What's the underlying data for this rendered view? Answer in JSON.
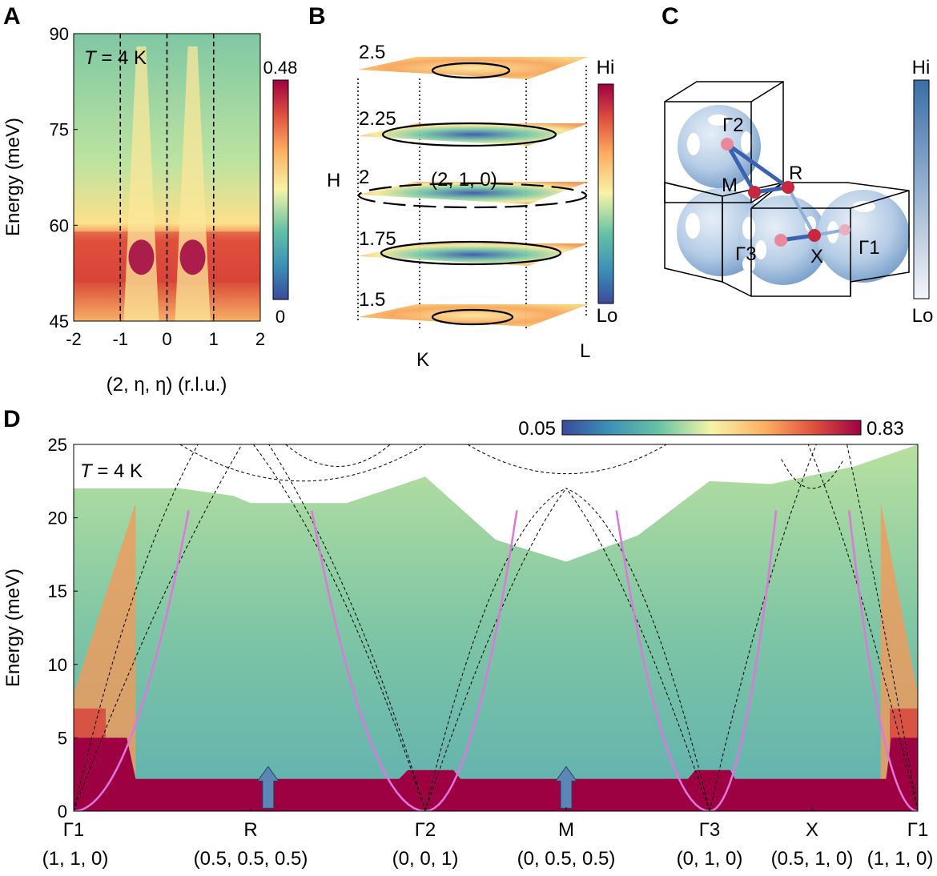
{
  "colors": {
    "jet_lo": "#3b4a9c",
    "jet_mid": "#f7f4a8",
    "jet_hi": "#9e0142",
    "blue_lo": "#f1f3f8",
    "blue_hi": "#3a6ea8",
    "magenta": "#dd77dd",
    "arrow": "#5b86b5"
  },
  "panels": {
    "A": {
      "letter": "A",
      "temp_sym": "T",
      "temp_rest": " = 4 K",
      "ylabel": "Energy (meV)",
      "xlabel": "(2, η, η) (r.l.u.)",
      "cb_max": "0.48",
      "cb_min": "0"
    },
    "B": {
      "letter": "B",
      "axis_h": "H",
      "axis_k": "K",
      "axis_l": "L",
      "levels": [
        "2.5",
        "2.25",
        "2",
        "1.75",
        "1.5"
      ],
      "center_label": "(2, 1, 0)",
      "cb_hi": "Hi",
      "cb_lo": "Lo"
    },
    "C": {
      "letter": "C",
      "points": [
        "Γ2",
        "M",
        "R",
        "Γ3",
        "X",
        "Γ1"
      ],
      "cb_hi": "Hi",
      "cb_lo": "Lo"
    },
    "D": {
      "letter": "D",
      "temp_sym": "T",
      "temp_rest": " = 4 K",
      "ylabel": "Energy (meV)",
      "cb_min": "0.05",
      "cb_max": "0.83",
      "path_labels": [
        "Γ1",
        "R",
        "Γ2",
        "M",
        "Γ3",
        "X",
        "Γ1"
      ],
      "path_coords": [
        "(1, 1, 0)",
        "(0.5, 0.5, 0.5)",
        "(0, 0, 1)",
        "(0, 0.5, 0.5)",
        "(0, 1, 0)",
        "(0.5, 1, 0)",
        "(1, 1, 0)"
      ]
    }
  },
  "chart_data": [
    {
      "type": "heatmap",
      "panel": "A",
      "title": "",
      "xlabel": "(2, η, η) (r.l.u.)",
      "ylabel": "Energy (meV)",
      "xlim": [
        -2,
        2
      ],
      "ylim": [
        45,
        90
      ],
      "x_ticks": [
        -2,
        -1,
        0,
        1,
        2
      ],
      "y_ticks": [
        45,
        60,
        75,
        90
      ],
      "dashed_lines_x": [
        -1,
        0,
        1
      ],
      "colorbar_range": [
        0,
        0.48
      ],
      "features": {
        "flat_band_energy": 55,
        "dispersive_branch_centers": [
          -0.55,
          0.55
        ]
      }
    },
    {
      "type": "heatmap",
      "panel": "D",
      "title": "",
      "xlabel": "",
      "ylabel": "Energy (meV)",
      "ylim": [
        0,
        25
      ],
      "y_ticks": [
        0,
        5,
        10,
        15,
        20,
        25
      ],
      "x_path_positions": [
        0,
        1,
        2,
        3,
        4,
        5,
        6
      ],
      "x_tick_labels": [
        "Γ1",
        "R",
        "Γ2",
        "M",
        "Γ3",
        "X",
        "Γ1"
      ],
      "colorbar_range": [
        0.05,
        0.83
      ],
      "gap_top_energy": 2.5,
      "upper_edge": [
        {
          "x": 0,
          "y": 22
        },
        {
          "x": 0.3,
          "y": 22.5
        },
        {
          "x": 0.9,
          "y": 21.5
        },
        {
          "x": 1.0,
          "y": 21
        },
        {
          "x": 1.55,
          "y": 21
        },
        {
          "x": 2.0,
          "y": 22.8
        },
        {
          "x": 2.5,
          "y": 18.5
        },
        {
          "x": 3.0,
          "y": 17
        },
        {
          "x": 3.5,
          "y": 18.8
        },
        {
          "x": 4.0,
          "y": 22.5
        },
        {
          "x": 4.6,
          "y": 22.3
        },
        {
          "x": 5.4,
          "y": 23.5
        },
        {
          "x": 6.0,
          "y": 25
        }
      ],
      "series": [
        {
          "name": "parabola",
          "style": "magenta",
          "center": 0,
          "y_at_edge": 20.5
        },
        {
          "name": "parabola",
          "style": "magenta",
          "center": 2,
          "y_at_edge": 20.5
        },
        {
          "name": "parabola",
          "style": "magenta",
          "center": 4,
          "y_at_edge": 20.5
        },
        {
          "name": "parabola",
          "style": "magenta",
          "center": 6,
          "y_at_edge": 20.5
        }
      ],
      "arrows_at": [
        1.1,
        3.0
      ]
    }
  ]
}
